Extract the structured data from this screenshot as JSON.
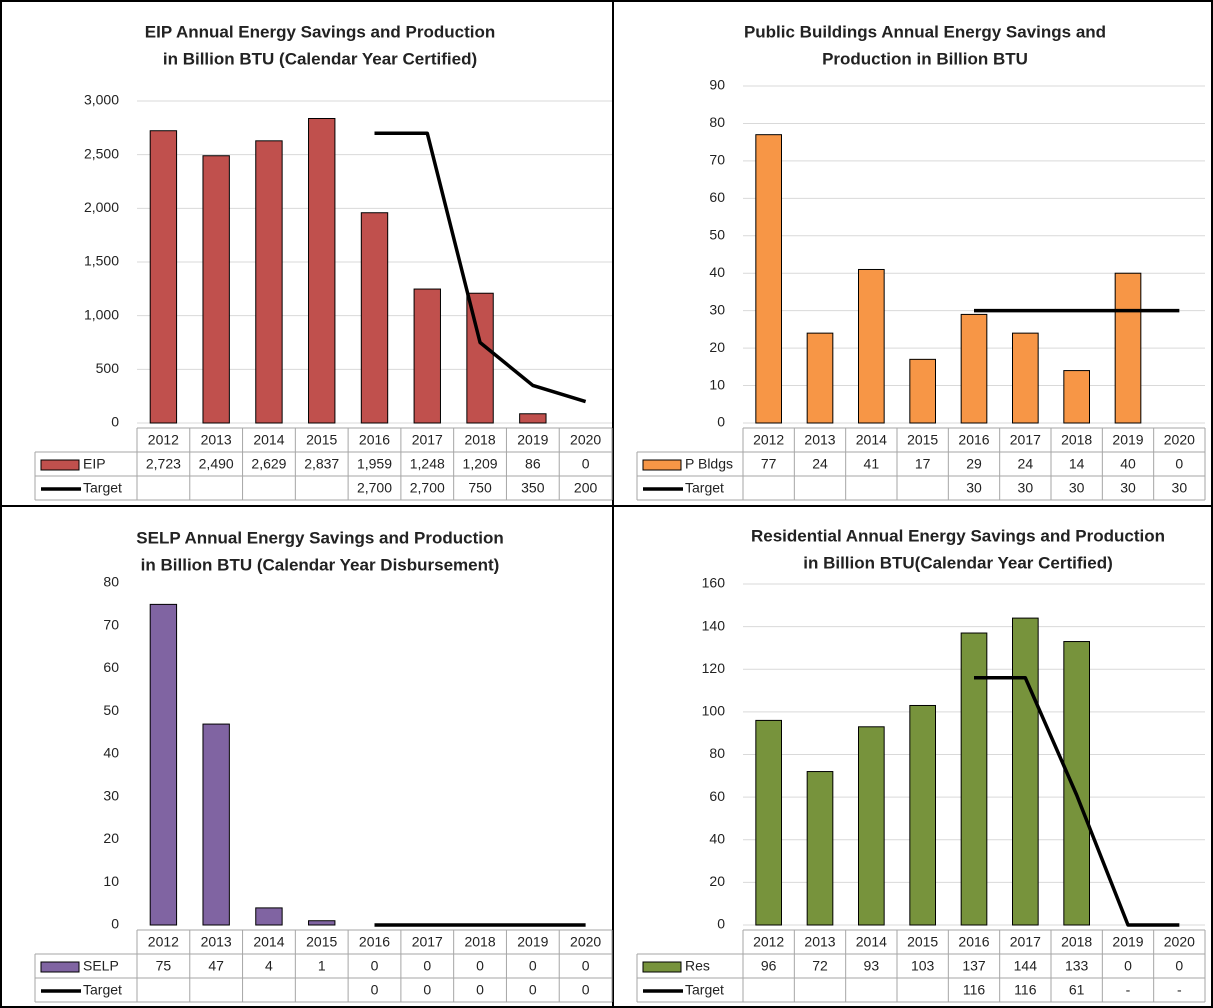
{
  "chart_data": [
    {
      "type": "bar",
      "title": [
        "EIP Annual Energy Savings and Production",
        "in Billion BTU (Calendar Year Certified)"
      ],
      "categories": [
        "2012",
        "2013",
        "2014",
        "2015",
        "2016",
        "2017",
        "2018",
        "2019",
        "2020"
      ],
      "series": [
        {
          "name": "EIP",
          "type": "bar",
          "color": "#c0504d",
          "values": [
            2723,
            2490,
            2629,
            2837,
            1959,
            1248,
            1209,
            86,
            0
          ],
          "value_labels": [
            "2,723",
            "2,490",
            "2,629",
            "2,837",
            "1,959",
            "1,248",
            "1,209",
            "86",
            "0"
          ]
        },
        {
          "name": "Target",
          "type": "line",
          "color": "#000000",
          "values": [
            null,
            null,
            null,
            null,
            2700,
            2700,
            750,
            350,
            200
          ],
          "value_labels": [
            null,
            null,
            null,
            null,
            "2,700",
            "2,700",
            "750",
            "350",
            "200"
          ]
        }
      ],
      "ylim": [
        0,
        3000
      ],
      "yticks": [
        0,
        500,
        {
          "value": 1000,
          "label": "1,000"
        },
        {
          "value": 1500,
          "label": "1,500"
        },
        {
          "value": 2000,
          "label": "2,000"
        },
        {
          "value": 2500,
          "label": "2,500"
        },
        {
          "value": 3000,
          "label": "3,000"
        }
      ],
      "grid": true
    },
    {
      "type": "bar",
      "title": [
        "Public Buildings Annual Energy Savings and",
        "Production in Billion BTU"
      ],
      "categories": [
        "2012",
        "2013",
        "2014",
        "2015",
        "2016",
        "2017",
        "2018",
        "2019",
        "2020"
      ],
      "series": [
        {
          "name": "P Bldgs",
          "type": "bar",
          "color": "#f79646",
          "values": [
            77,
            24,
            41,
            17,
            29,
            24,
            14,
            40,
            0
          ]
        },
        {
          "name": "Target",
          "type": "line",
          "color": "#000000",
          "values": [
            null,
            null,
            null,
            null,
            30,
            30,
            30,
            30,
            30
          ]
        }
      ],
      "ylim": [
        0,
        90
      ],
      "yticks": [
        0,
        10,
        20,
        30,
        40,
        50,
        60,
        70,
        80,
        90
      ],
      "grid": true
    },
    {
      "type": "bar",
      "title": [
        "SELP Annual Energy Savings and Production",
        "in Billion BTU (Calendar Year Disbursement)"
      ],
      "categories": [
        "2012",
        "2013",
        "2014",
        "2015",
        "2016",
        "2017",
        "2018",
        "2019",
        "2020"
      ],
      "series": [
        {
          "name": "SELP",
          "type": "bar",
          "color": "#8064a2",
          "values": [
            75,
            47,
            4,
            1,
            0,
            0,
            0,
            0,
            0
          ]
        },
        {
          "name": "Target",
          "type": "line",
          "color": "#000000",
          "values": [
            null,
            null,
            null,
            null,
            0,
            0,
            0,
            0,
            0
          ]
        }
      ],
      "ylim": [
        0,
        80
      ],
      "yticks": [
        0,
        10,
        20,
        30,
        40,
        50,
        60,
        70,
        80
      ],
      "grid": false
    },
    {
      "type": "bar",
      "title": [
        "Residential Annual Energy Savings and Production",
        "in Billion BTU(Calendar Year Certified)"
      ],
      "categories": [
        "2012",
        "2013",
        "2014",
        "2015",
        "2016",
        "2017",
        "2018",
        "2019",
        "2020"
      ],
      "series": [
        {
          "name": "Res",
          "type": "bar",
          "color": "#77933c",
          "values": [
            96,
            72,
            93,
            103,
            137,
            144,
            133,
            0,
            0
          ]
        },
        {
          "name": "Target",
          "type": "line",
          "color": "#000000",
          "values": [
            null,
            null,
            null,
            null,
            116,
            116,
            61,
            0,
            0
          ],
          "value_labels": [
            null,
            null,
            null,
            null,
            "116",
            "116",
            "61",
            "-",
            "-"
          ]
        }
      ],
      "ylim": [
        0,
        160
      ],
      "yticks": [
        0,
        20,
        40,
        60,
        80,
        100,
        120,
        140,
        160
      ],
      "grid": true
    }
  ]
}
